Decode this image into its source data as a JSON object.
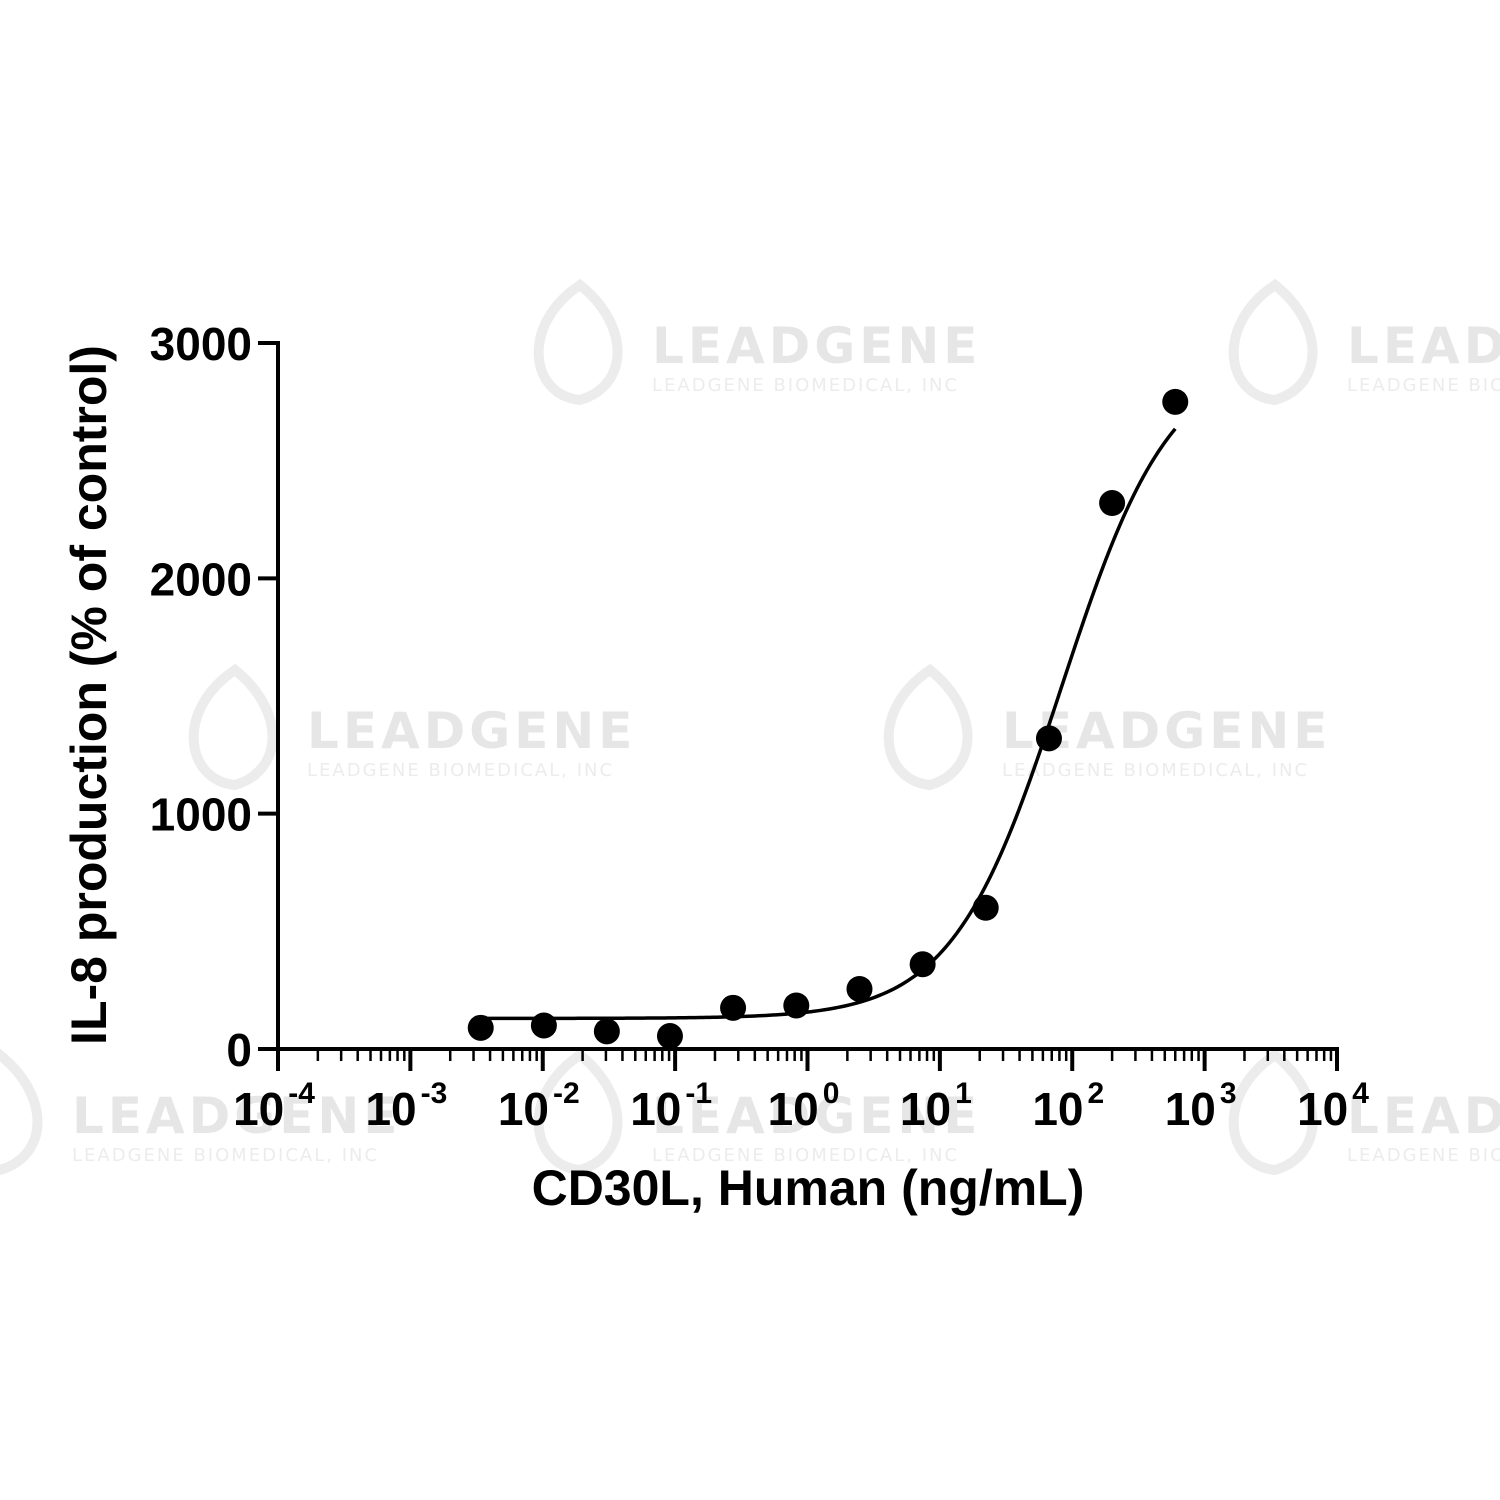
{
  "chart_data": {
    "type": "scatter",
    "xlabel": "CD30L, Human (ng/mL)",
    "ylabel": "IL-8 production (% of control)",
    "x_scale": "log10",
    "xlim": [
      0.0001,
      10000
    ],
    "ylim": [
      0,
      3000
    ],
    "x_ticks": [
      {
        "value": 0.0001,
        "base": "10",
        "exp": "-4"
      },
      {
        "value": 0.001,
        "base": "10",
        "exp": "-3"
      },
      {
        "value": 0.01,
        "base": "10",
        "exp": "-2"
      },
      {
        "value": 0.1,
        "base": "10",
        "exp": "-1"
      },
      {
        "value": 1,
        "base": "10",
        "exp": "0"
      },
      {
        "value": 10,
        "base": "10",
        "exp": "1"
      },
      {
        "value": 100,
        "base": "10",
        "exp": "2"
      },
      {
        "value": 1000,
        "base": "10",
        "exp": "3"
      },
      {
        "value": 10000,
        "base": "10",
        "exp": "4"
      }
    ],
    "y_ticks": [
      0,
      1000,
      2000,
      3000
    ],
    "series": [
      {
        "points": [
          {
            "x": 0.0034,
            "y": 90
          },
          {
            "x": 0.0102,
            "y": 100
          },
          {
            "x": 0.0305,
            "y": 75
          },
          {
            "x": 0.0914,
            "y": 55
          },
          {
            "x": 0.274,
            "y": 175
          },
          {
            "x": 0.823,
            "y": 185
          },
          {
            "x": 2.47,
            "y": 255
          },
          {
            "x": 7.41,
            "y": 360
          },
          {
            "x": 22.2,
            "y": 600
          },
          {
            "x": 66.7,
            "y": 1320
          },
          {
            "x": 200,
            "y": 2320
          },
          {
            "x": 600,
            "y": 2750
          }
        ],
        "fit": {
          "type": "4PL",
          "bottom": 130,
          "top": 2950,
          "log_ec50": 1.92,
          "hill": 1.05
        }
      }
    ],
    "grid": false,
    "legend": "none"
  },
  "watermark": {
    "word": "LEADGENE",
    "sub": "LEADGENE BIOMEDICAL, INC"
  },
  "colors": {
    "axis": "#000000",
    "marker": "#000000",
    "watermark": "#e6e6e6"
  }
}
